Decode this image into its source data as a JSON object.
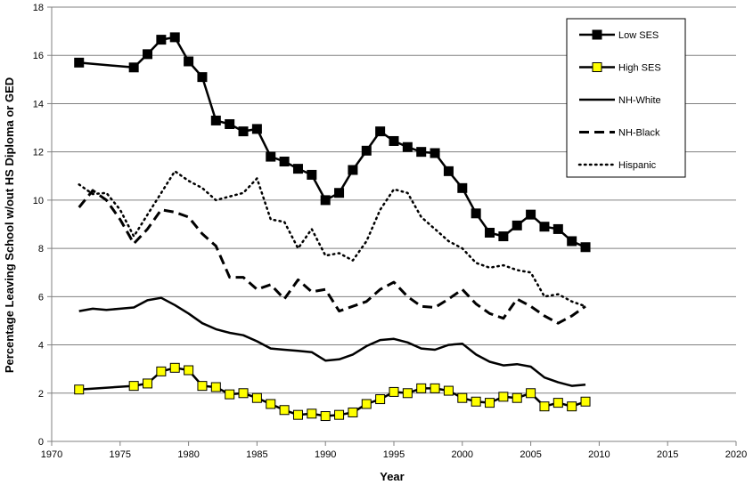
{
  "chart_data": {
    "type": "line",
    "title": "",
    "xlabel": "Year",
    "ylabel": "Percentage Leaving School w/out HS Diploma or GED",
    "xlim": [
      1970,
      2020
    ],
    "ylim": [
      0,
      18
    ],
    "xticks": [
      1970,
      1975,
      1980,
      1985,
      1990,
      1995,
      2000,
      2005,
      2010,
      2015,
      2020
    ],
    "yticks": [
      0,
      2,
      4,
      6,
      8,
      10,
      12,
      14,
      16,
      18
    ],
    "grid": "horizontal",
    "legend_position": "top-right",
    "series": [
      {
        "name": "Low SES",
        "style": "solid-square-black",
        "color": "#000000",
        "x": [
          1972,
          1976,
          1977,
          1978,
          1979,
          1980,
          1981,
          1982,
          1983,
          1984,
          1985,
          1986,
          1987,
          1988,
          1989,
          1990,
          1991,
          1992,
          1993,
          1994,
          1995,
          1996,
          1997,
          1998,
          1999,
          2000,
          2001,
          2002,
          2003,
          2004,
          2005,
          2006,
          2007,
          2008,
          2009
        ],
        "y": [
          15.7,
          15.5,
          16.05,
          16.65,
          16.75,
          15.75,
          15.1,
          13.3,
          13.15,
          12.85,
          12.95,
          11.8,
          11.6,
          11.3,
          11.05,
          10.0,
          10.3,
          11.25,
          12.05,
          12.85,
          12.45,
          12.2,
          12.0,
          11.95,
          11.2,
          10.5,
          9.45,
          8.65,
          8.5,
          8.95,
          9.4,
          8.9,
          8.8,
          8.3,
          8.05
        ]
      },
      {
        "name": "High SES",
        "style": "solid-square-yellow",
        "color": "#000000",
        "marker_fill": "#ffff00",
        "x": [
          1972,
          1976,
          1977,
          1978,
          1979,
          1980,
          1981,
          1982,
          1983,
          1984,
          1985,
          1986,
          1987,
          1988,
          1989,
          1990,
          1991,
          1992,
          1993,
          1994,
          1995,
          1996,
          1997,
          1998,
          1999,
          2000,
          2001,
          2002,
          2003,
          2004,
          2005,
          2006,
          2007,
          2008,
          2009
        ],
        "y": [
          2.15,
          2.3,
          2.4,
          2.9,
          3.05,
          2.95,
          2.3,
          2.25,
          1.95,
          2.0,
          1.8,
          1.55,
          1.3,
          1.1,
          1.15,
          1.05,
          1.1,
          1.2,
          1.55,
          1.75,
          2.05,
          2.0,
          2.2,
          2.2,
          2.1,
          1.8,
          1.65,
          1.6,
          1.85,
          1.8,
          2.0,
          1.45,
          1.6,
          1.45,
          1.65
        ]
      },
      {
        "name": "NH-White",
        "style": "solid",
        "color": "#000000",
        "x": [
          1972,
          1973,
          1974,
          1975,
          1976,
          1977,
          1978,
          1979,
          1980,
          1981,
          1982,
          1983,
          1984,
          1985,
          1986,
          1987,
          1988,
          1989,
          1990,
          1991,
          1992,
          1993,
          1994,
          1995,
          1996,
          1997,
          1998,
          1999,
          2000,
          2001,
          2002,
          2003,
          2004,
          2005,
          2006,
          2007,
          2008,
          2009
        ],
        "y": [
          5.4,
          5.5,
          5.45,
          5.5,
          5.55,
          5.85,
          5.95,
          5.65,
          5.3,
          4.9,
          4.65,
          4.5,
          4.4,
          4.15,
          3.85,
          3.8,
          3.75,
          3.7,
          3.35,
          3.4,
          3.6,
          3.95,
          4.2,
          4.25,
          4.1,
          3.85,
          3.8,
          4.0,
          4.05,
          3.6,
          3.3,
          3.15,
          3.2,
          3.1,
          2.65,
          2.45,
          2.3,
          2.35
        ]
      },
      {
        "name": "NH-Black",
        "style": "dashed",
        "color": "#000000",
        "x": [
          1972,
          1973,
          1974,
          1975,
          1976,
          1977,
          1978,
          1979,
          1980,
          1981,
          1982,
          1983,
          1984,
          1985,
          1986,
          1987,
          1988,
          1989,
          1990,
          1991,
          1992,
          1993,
          1994,
          1995,
          1996,
          1997,
          1998,
          1999,
          2000,
          2001,
          2002,
          2003,
          2004,
          2005,
          2006,
          2007,
          2008,
          2009
        ],
        "y": [
          9.7,
          10.4,
          10.0,
          9.2,
          8.2,
          8.8,
          9.6,
          9.5,
          9.3,
          8.6,
          8.1,
          6.8,
          6.8,
          6.3,
          6.5,
          5.9,
          6.7,
          6.2,
          6.3,
          5.4,
          5.6,
          5.8,
          6.3,
          6.6,
          6.0,
          5.6,
          5.55,
          5.9,
          6.3,
          5.7,
          5.3,
          5.1,
          5.9,
          5.6,
          5.2,
          4.9,
          5.2,
          5.6
        ]
      },
      {
        "name": "Hispanic",
        "style": "dotted",
        "color": "#000000",
        "x": [
          1972,
          1973,
          1974,
          1975,
          1976,
          1977,
          1978,
          1979,
          1980,
          1981,
          1982,
          1983,
          1984,
          1985,
          1986,
          1987,
          1988,
          1989,
          1990,
          1991,
          1992,
          1993,
          1994,
          1995,
          1996,
          1997,
          1998,
          1999,
          2000,
          2001,
          2002,
          2003,
          2004,
          2005,
          2006,
          2007,
          2008,
          2009
        ],
        "y": [
          10.65,
          10.25,
          10.3,
          9.6,
          8.5,
          9.4,
          10.3,
          11.2,
          10.8,
          10.5,
          10.0,
          10.15,
          10.3,
          10.9,
          9.2,
          9.1,
          8.0,
          8.8,
          7.7,
          7.8,
          7.5,
          8.3,
          9.6,
          10.45,
          10.3,
          9.3,
          8.8,
          8.3,
          8.0,
          7.4,
          7.2,
          7.3,
          7.1,
          7.0,
          6.0,
          6.1,
          5.8,
          5.6
        ]
      }
    ]
  }
}
